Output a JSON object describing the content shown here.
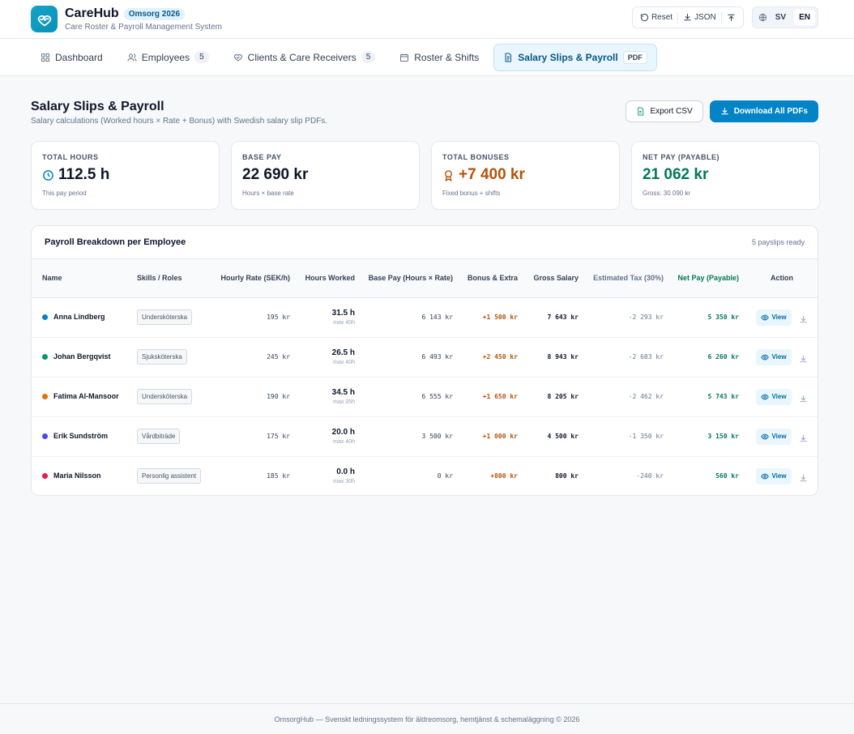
{
  "app": {
    "name": "CareHub",
    "badge": "Omsorg 2026",
    "subtitle": "Care Roster & Payroll Management System"
  },
  "top_actions": {
    "reset": "Reset",
    "json": "JSON",
    "lang_sv": "SV",
    "lang_en": "EN",
    "active_lang": "EN"
  },
  "nav": {
    "dashboard": "Dashboard",
    "employees": "Employees",
    "employees_count": "5",
    "clients": "Clients & Care Receivers",
    "clients_count": "5",
    "roster": "Roster & Shifts",
    "payroll": "Salary Slips & Payroll",
    "payroll_badge": "PDF"
  },
  "page": {
    "title": "Salary Slips & Payroll",
    "subtitle": "Salary calculations (Worked hours × Rate + Bonus) with Swedish salary slip PDFs.",
    "export_csv": "Export CSV",
    "download_all": "Download All PDFs"
  },
  "stats": {
    "total_hours": {
      "label": "TOTAL HOURS",
      "value": "112.5 h",
      "note": "This pay period"
    },
    "base_pay": {
      "label": "BASE PAY",
      "value": "22 690 kr",
      "note": "Hours × base rate"
    },
    "total_bonuses": {
      "label": "TOTAL BONUSES",
      "value": "+7 400 kr",
      "note": "Fixed bonus + shifts"
    },
    "net_pay": {
      "label": "NET PAY (PAYABLE)",
      "value": "21 062 kr",
      "note": "Gross: 30 090 kr"
    }
  },
  "colors": {
    "accent": "#0284c7",
    "bonus": "#b45309",
    "net": "#047857"
  },
  "table": {
    "title": "Payroll Breakdown per Employee",
    "meta": "5 payslips ready",
    "headers": {
      "name": "Name",
      "skills": "Skills / Roles",
      "rate": "Hourly Rate (SEK/h)",
      "hours": "Hours Worked",
      "base": "Base Pay (Hours × Rate)",
      "bonus": "Bonus & Extra",
      "gross": "Gross Salary",
      "tax": "Estimated Tax (30%)",
      "net": "Net Pay (Payable)",
      "action": "Action"
    },
    "view_label": "View",
    "rows": [
      {
        "name": "Anna Lindberg",
        "dot": "#0284c7",
        "skill": "Undersköterska",
        "rate": "195 kr",
        "hours": "31.5 h",
        "max": "max 40h",
        "base": "6 143 kr",
        "bonus": "+1 500 kr",
        "gross": "7 643 kr",
        "tax": "-2 293 kr",
        "net": "5 350 kr"
      },
      {
        "name": "Johan Bergqvist",
        "dot": "#059669",
        "skill": "Sjuksköterska",
        "rate": "245 kr",
        "hours": "26.5 h",
        "max": "max 40h",
        "base": "6 493 kr",
        "bonus": "+2 450 kr",
        "gross": "8 943 kr",
        "tax": "-2 683 kr",
        "net": "6 260 kr"
      },
      {
        "name": "Fatima Al-Mansoor",
        "dot": "#d97706",
        "skill": "Undersköterska",
        "rate": "190 kr",
        "hours": "34.5 h",
        "max": "max 35h",
        "base": "6 555 kr",
        "bonus": "+1 650 kr",
        "gross": "8 205 kr",
        "tax": "-2 462 kr",
        "net": "5 743 kr"
      },
      {
        "name": "Erik Sundström",
        "dot": "#4f46e5",
        "skill": "Vårdbiträde",
        "rate": "175 kr",
        "hours": "20.0 h",
        "max": "max 40h",
        "base": "3 500 kr",
        "bonus": "+1 000 kr",
        "gross": "4 500 kr",
        "tax": "-1 350 kr",
        "net": "3 150 kr"
      },
      {
        "name": "Maria Nilsson",
        "dot": "#e11d48",
        "skill": "Personlig assistent",
        "rate": "185 kr",
        "hours": "0.0 h",
        "max": "max 30h",
        "base": "0 kr",
        "bonus": "+800 kr",
        "gross": "800 kr",
        "tax": "-240 kr",
        "net": "560 kr"
      }
    ]
  },
  "footer": "OmsorgHub — Svenskt ledningssystem för äldreomsorg, hemtjänst & schemaläggning © 2026"
}
